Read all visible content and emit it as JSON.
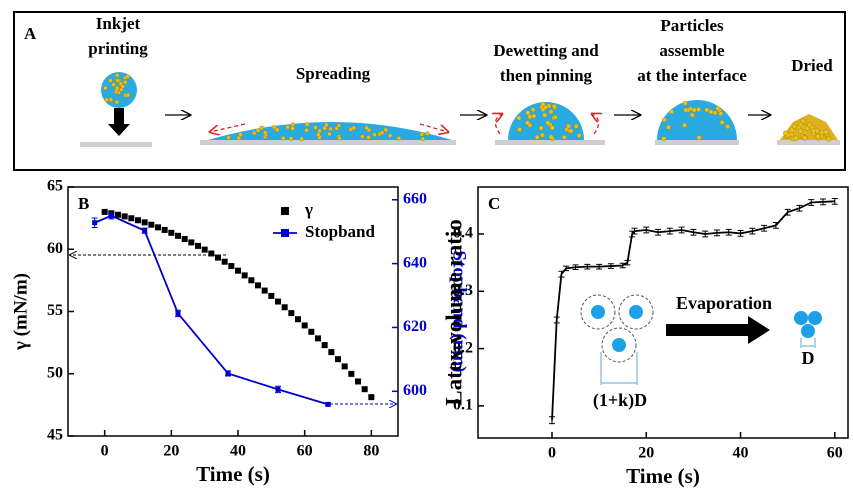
{
  "diagram": {
    "panel": "A",
    "steps": [
      {
        "lines": [
          "Inkjet",
          "printing"
        ]
      },
      {
        "lines": [
          "Spreading"
        ]
      },
      {
        "lines": [
          "Dewetting and",
          "then pinning"
        ]
      },
      {
        "lines": [
          "Particles",
          "assemble",
          "at the interface"
        ]
      },
      {
        "lines": [
          "Dried"
        ]
      }
    ]
  },
  "chart_data": [
    {
      "type": "line",
      "panel": "B",
      "xlabel": "Time (s)",
      "ylabel": "γ (mN/m)",
      "y2label": "Stopband (nm)",
      "xlim": [
        -11,
        88
      ],
      "ylim": [
        45,
        65
      ],
      "y2lim": [
        586,
        664
      ],
      "xticks": [
        0,
        20,
        40,
        60,
        80
      ],
      "yticks": [
        45,
        50,
        55,
        60,
        65
      ],
      "y2ticks": [
        600,
        620,
        640,
        660
      ],
      "legend": "upper right",
      "series": [
        {
          "name": "γ",
          "color": "#000000",
          "marker": "square",
          "linestyle": "none",
          "x": [
            0,
            2,
            4,
            6,
            8,
            10,
            12,
            14,
            16,
            18,
            20,
            22,
            24,
            26,
            28,
            30,
            32,
            34,
            36,
            38,
            40,
            42,
            44,
            46,
            48,
            50,
            52,
            54,
            56,
            58,
            60,
            62,
            64,
            66,
            68,
            70,
            72,
            74,
            76,
            78,
            80
          ],
          "values": [
            63.0,
            62.89,
            62.77,
            62.64,
            62.49,
            62.33,
            62.16,
            61.97,
            61.76,
            61.55,
            61.32,
            61.08,
            60.82,
            60.55,
            60.27,
            59.97,
            59.66,
            59.33,
            59.0,
            58.65,
            58.28,
            57.9,
            57.51,
            57.1,
            56.68,
            56.25,
            55.8,
            55.34,
            54.87,
            54.38,
            53.88,
            53.37,
            52.84,
            52.3,
            51.74,
            51.17,
            50.59,
            49.99,
            49.38,
            48.76,
            48.12
          ]
        },
        {
          "name": "Stopband",
          "color": "#0000cc",
          "axis": "y2",
          "marker": "square",
          "linestyle": "solid",
          "x": [
            -3,
            2,
            12,
            22,
            37,
            52,
            67
          ],
          "values": [
            652.8,
            655,
            650.3,
            624.4,
            605.6,
            600.6,
            595.9
          ],
          "errors": [
            1.5,
            1,
            0.8,
            1,
            0.8,
            1,
            0.5
          ]
        }
      ]
    },
    {
      "type": "line",
      "panel": "C",
      "xlabel": "Time (s)",
      "ylabel": "Latex volume ratio",
      "xlim": [
        -15.7,
        62.8
      ],
      "ylim": [
        0.044,
        0.482
      ],
      "xticks": [
        0,
        20,
        40,
        60
      ],
      "yticks": [
        0.1,
        0.2,
        0.3,
        0.4
      ],
      "annotations": [
        "Evaporation",
        "(1+k)D",
        "D"
      ],
      "series": [
        {
          "color": "#000000",
          "linestyle": "solid",
          "x": [
            0,
            1,
            2,
            3,
            5,
            7.5,
            10,
            12.5,
            15,
            16,
            17,
            17.5,
            20,
            22.5,
            25,
            27.5,
            30,
            32.5,
            35,
            37.5,
            40,
            42.5,
            45,
            47.5,
            50,
            52.5,
            55,
            57.5,
            60
          ],
          "values": [
            0.075,
            0.25,
            0.33,
            0.34,
            0.342,
            0.343,
            0.343,
            0.344,
            0.345,
            0.35,
            0.4,
            0.405,
            0.407,
            0.403,
            0.405,
            0.407,
            0.403,
            0.4,
            0.402,
            0.403,
            0.401,
            0.405,
            0.41,
            0.415,
            0.438,
            0.445,
            0.455,
            0.456,
            0.457
          ],
          "errors": [
            0.006,
            0.005,
            0.005,
            0.004,
            0.004,
            0.004,
            0.004,
            0.004,
            0.004,
            0.004,
            0.005,
            0.005,
            0.005,
            0.005,
            0.005,
            0.005,
            0.005,
            0.005,
            0.005,
            0.005,
            0.005,
            0.005,
            0.005,
            0.005,
            0.005,
            0.005,
            0.005,
            0.005,
            0.005
          ]
        }
      ]
    }
  ]
}
